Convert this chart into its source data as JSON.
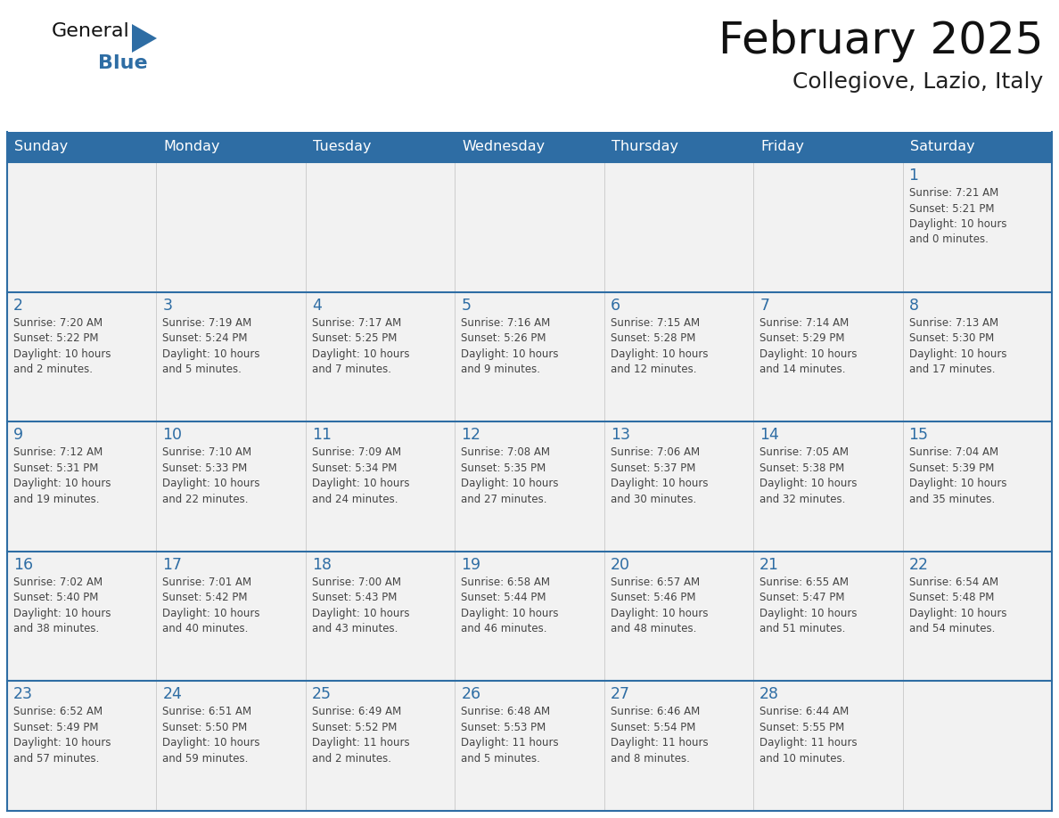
{
  "title": "February 2025",
  "subtitle": "Collegiove, Lazio, Italy",
  "header_bg": "#2E6DA4",
  "header_text_color": "#FFFFFF",
  "cell_bg": "#F2F2F2",
  "day_number_color": "#2E6DA4",
  "text_color": "#444444",
  "border_color": "#2E6DA4",
  "days_of_week": [
    "Sunday",
    "Monday",
    "Tuesday",
    "Wednesday",
    "Thursday",
    "Friday",
    "Saturday"
  ],
  "weeks": [
    [
      {
        "day": "",
        "info": ""
      },
      {
        "day": "",
        "info": ""
      },
      {
        "day": "",
        "info": ""
      },
      {
        "day": "",
        "info": ""
      },
      {
        "day": "",
        "info": ""
      },
      {
        "day": "",
        "info": ""
      },
      {
        "day": "1",
        "info": "Sunrise: 7:21 AM\nSunset: 5:21 PM\nDaylight: 10 hours\nand 0 minutes."
      }
    ],
    [
      {
        "day": "2",
        "info": "Sunrise: 7:20 AM\nSunset: 5:22 PM\nDaylight: 10 hours\nand 2 minutes."
      },
      {
        "day": "3",
        "info": "Sunrise: 7:19 AM\nSunset: 5:24 PM\nDaylight: 10 hours\nand 5 minutes."
      },
      {
        "day": "4",
        "info": "Sunrise: 7:17 AM\nSunset: 5:25 PM\nDaylight: 10 hours\nand 7 minutes."
      },
      {
        "day": "5",
        "info": "Sunrise: 7:16 AM\nSunset: 5:26 PM\nDaylight: 10 hours\nand 9 minutes."
      },
      {
        "day": "6",
        "info": "Sunrise: 7:15 AM\nSunset: 5:28 PM\nDaylight: 10 hours\nand 12 minutes."
      },
      {
        "day": "7",
        "info": "Sunrise: 7:14 AM\nSunset: 5:29 PM\nDaylight: 10 hours\nand 14 minutes."
      },
      {
        "day": "8",
        "info": "Sunrise: 7:13 AM\nSunset: 5:30 PM\nDaylight: 10 hours\nand 17 minutes."
      }
    ],
    [
      {
        "day": "9",
        "info": "Sunrise: 7:12 AM\nSunset: 5:31 PM\nDaylight: 10 hours\nand 19 minutes."
      },
      {
        "day": "10",
        "info": "Sunrise: 7:10 AM\nSunset: 5:33 PM\nDaylight: 10 hours\nand 22 minutes."
      },
      {
        "day": "11",
        "info": "Sunrise: 7:09 AM\nSunset: 5:34 PM\nDaylight: 10 hours\nand 24 minutes."
      },
      {
        "day": "12",
        "info": "Sunrise: 7:08 AM\nSunset: 5:35 PM\nDaylight: 10 hours\nand 27 minutes."
      },
      {
        "day": "13",
        "info": "Sunrise: 7:06 AM\nSunset: 5:37 PM\nDaylight: 10 hours\nand 30 minutes."
      },
      {
        "day": "14",
        "info": "Sunrise: 7:05 AM\nSunset: 5:38 PM\nDaylight: 10 hours\nand 32 minutes."
      },
      {
        "day": "15",
        "info": "Sunrise: 7:04 AM\nSunset: 5:39 PM\nDaylight: 10 hours\nand 35 minutes."
      }
    ],
    [
      {
        "day": "16",
        "info": "Sunrise: 7:02 AM\nSunset: 5:40 PM\nDaylight: 10 hours\nand 38 minutes."
      },
      {
        "day": "17",
        "info": "Sunrise: 7:01 AM\nSunset: 5:42 PM\nDaylight: 10 hours\nand 40 minutes."
      },
      {
        "day": "18",
        "info": "Sunrise: 7:00 AM\nSunset: 5:43 PM\nDaylight: 10 hours\nand 43 minutes."
      },
      {
        "day": "19",
        "info": "Sunrise: 6:58 AM\nSunset: 5:44 PM\nDaylight: 10 hours\nand 46 minutes."
      },
      {
        "day": "20",
        "info": "Sunrise: 6:57 AM\nSunset: 5:46 PM\nDaylight: 10 hours\nand 48 minutes."
      },
      {
        "day": "21",
        "info": "Sunrise: 6:55 AM\nSunset: 5:47 PM\nDaylight: 10 hours\nand 51 minutes."
      },
      {
        "day": "22",
        "info": "Sunrise: 6:54 AM\nSunset: 5:48 PM\nDaylight: 10 hours\nand 54 minutes."
      }
    ],
    [
      {
        "day": "23",
        "info": "Sunrise: 6:52 AM\nSunset: 5:49 PM\nDaylight: 10 hours\nand 57 minutes."
      },
      {
        "day": "24",
        "info": "Sunrise: 6:51 AM\nSunset: 5:50 PM\nDaylight: 10 hours\nand 59 minutes."
      },
      {
        "day": "25",
        "info": "Sunrise: 6:49 AM\nSunset: 5:52 PM\nDaylight: 11 hours\nand 2 minutes."
      },
      {
        "day": "26",
        "info": "Sunrise: 6:48 AM\nSunset: 5:53 PM\nDaylight: 11 hours\nand 5 minutes."
      },
      {
        "day": "27",
        "info": "Sunrise: 6:46 AM\nSunset: 5:54 PM\nDaylight: 11 hours\nand 8 minutes."
      },
      {
        "day": "28",
        "info": "Sunrise: 6:44 AM\nSunset: 5:55 PM\nDaylight: 11 hours\nand 10 minutes."
      },
      {
        "day": "",
        "info": ""
      }
    ]
  ]
}
